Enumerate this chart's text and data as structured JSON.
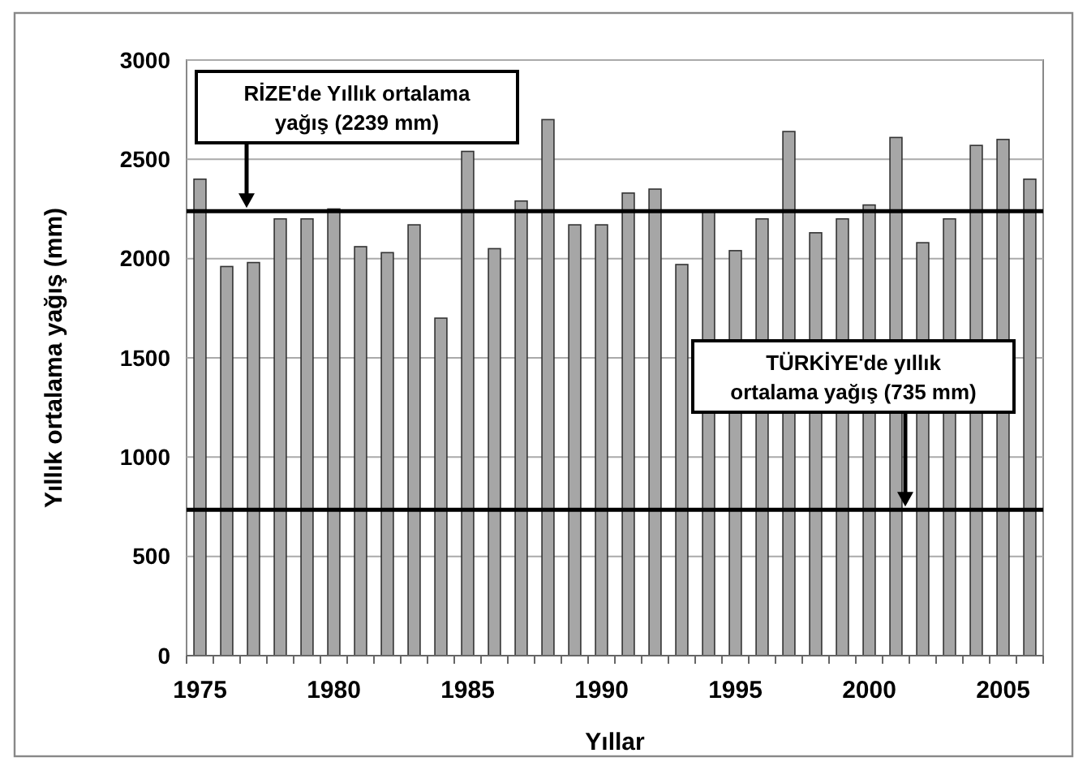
{
  "chart_data": {
    "type": "bar",
    "xlabel": "Yıllar",
    "ylabel": "Yıllık ortalama yağış  (mm)",
    "categories": [
      "1975",
      null,
      null,
      null,
      null,
      "1980",
      null,
      null,
      null,
      null,
      "1985",
      null,
      null,
      null,
      null,
      "1990",
      null,
      null,
      null,
      null,
      "1995",
      null,
      null,
      null,
      null,
      "2000",
      null,
      null,
      null,
      null,
      "2005",
      null
    ],
    "values": [
      2400,
      1960,
      1980,
      2200,
      2200,
      2250,
      2060,
      2030,
      2170,
      1700,
      2540,
      2050,
      2290,
      2700,
      2170,
      2170,
      2330,
      2350,
      1970,
      2240,
      2040,
      2200,
      2640,
      2130,
      2200,
      2270,
      2610,
      2080,
      2200,
      2570,
      2600,
      2400
    ],
    "color": "#a6a6a6",
    "ylim": [
      0,
      3000
    ],
    "yticks": [
      0,
      500,
      1000,
      1500,
      2000,
      2500,
      3000
    ],
    "grid": "y",
    "ref_lines": [
      {
        "axis": "y",
        "value": 2239,
        "label": "RİZE'de Yıllık ortalama yağış  (2239 mm)",
        "color": "#000000"
      },
      {
        "axis": "y",
        "value": 735,
        "label": "TÜRKİYE'de yıllık ortalama yağış (735 mm)",
        "color": "#000000"
      }
    ]
  }
}
